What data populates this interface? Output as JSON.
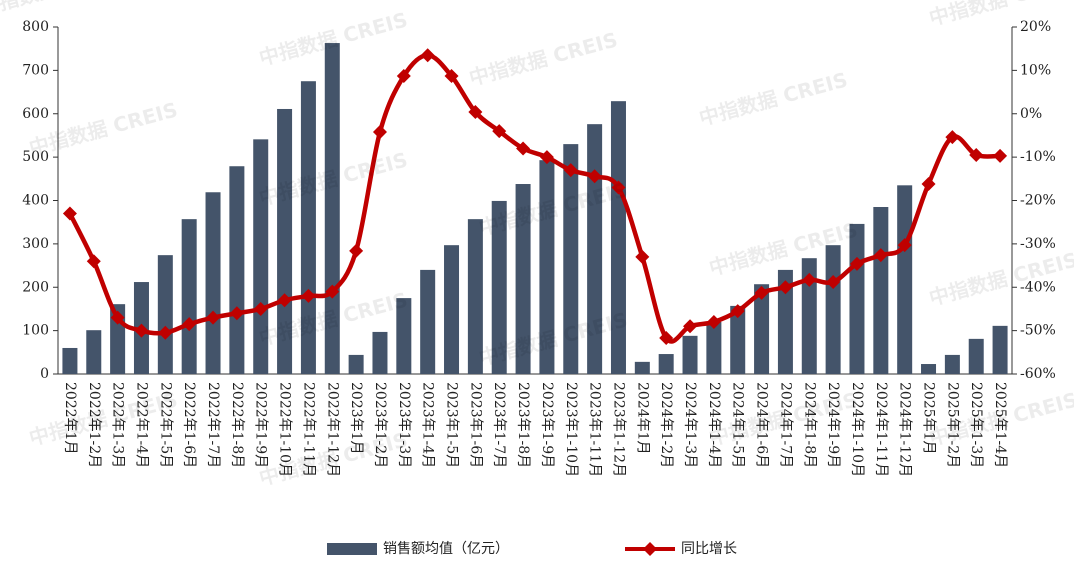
{
  "chart_data": {
    "type": "bar_line",
    "watermark": "中指数据 CREIS",
    "categories": [
      "2022年1月",
      "2022年1-2月",
      "2022年1-3月",
      "2022年1-4月",
      "2022年1-5月",
      "2022年1-6月",
      "2022年1-7月",
      "2022年1-8月",
      "2022年1-9月",
      "2022年1-10月",
      "2022年1-11月",
      "2022年1-12月",
      "2023年1月",
      "2023年1-2月",
      "2023年1-3月",
      "2023年1-4月",
      "2023年1-5月",
      "2023年1-6月",
      "2023年1-7月",
      "2023年1-8月",
      "2023年1-9月",
      "2023年1-10月",
      "2023年1-11月",
      "2023年1-12月",
      "2024年1月",
      "2024年1-2月",
      "2024年1-3月",
      "2024年1-4月",
      "2024年1-5月",
      "2024年1-6月",
      "2024年1-7月",
      "2024年1-8月",
      "2024年1-9月",
      "2024年1-10月",
      "2024年1-11月",
      "2024年1-12月",
      "2025年1月",
      "2025年1-2月",
      "2025年1-3月",
      "2025年1-4月"
    ],
    "series": [
      {
        "name": "销售额均值（亿元）",
        "color": "#44546a",
        "type": "bar",
        "values": [
          60,
          101,
          161,
          212,
          274,
          357,
          419,
          479,
          541,
          611,
          675,
          763,
          44,
          97,
          175,
          240,
          297,
          357,
          399,
          438,
          493,
          530,
          576,
          629,
          28,
          46,
          88,
          120,
          157,
          207,
          240,
          267,
          297,
          346,
          385,
          435,
          23,
          44,
          81,
          111
        ]
      },
      {
        "name": "同比增长",
        "color": "#c00000",
        "type": "line",
        "axis": "y2",
        "values": [
          -23,
          -34,
          -47,
          -50,
          -50.5,
          -48.5,
          -47,
          -46,
          -45,
          -43,
          -42,
          -41,
          -31.6,
          -4.2,
          8.7,
          13.5,
          8.7,
          0.4,
          -4,
          -8,
          -10,
          -13,
          -14.4,
          -17,
          -33,
          -51.7,
          -49,
          -48,
          -45.5,
          -41.3,
          -40,
          -38.3,
          -38.8,
          -34.6,
          -32.6,
          -30.3,
          -16.2,
          -5.4,
          -9.5,
          -9.7
        ]
      }
    ],
    "ylim": [
      0,
      800
    ],
    "yticks": [
      0,
      100,
      200,
      300,
      400,
      500,
      600,
      700,
      800
    ],
    "y2lim": [
      -60,
      20
    ],
    "y2ticks": [
      {
        "value": 20,
        "label": "20%"
      },
      {
        "value": 10,
        "label": "10%"
      },
      {
        "value": 0,
        "label": "0%"
      },
      {
        "value": -10,
        "label": "-10%"
      },
      {
        "value": -20,
        "label": "-20%"
      },
      {
        "value": -30,
        "label": "-30%"
      },
      {
        "value": -40,
        "label": "-40%"
      },
      {
        "value": -50,
        "label": "-50%"
      },
      {
        "value": -60,
        "label": "-60%"
      }
    ],
    "legend": "bottom"
  }
}
